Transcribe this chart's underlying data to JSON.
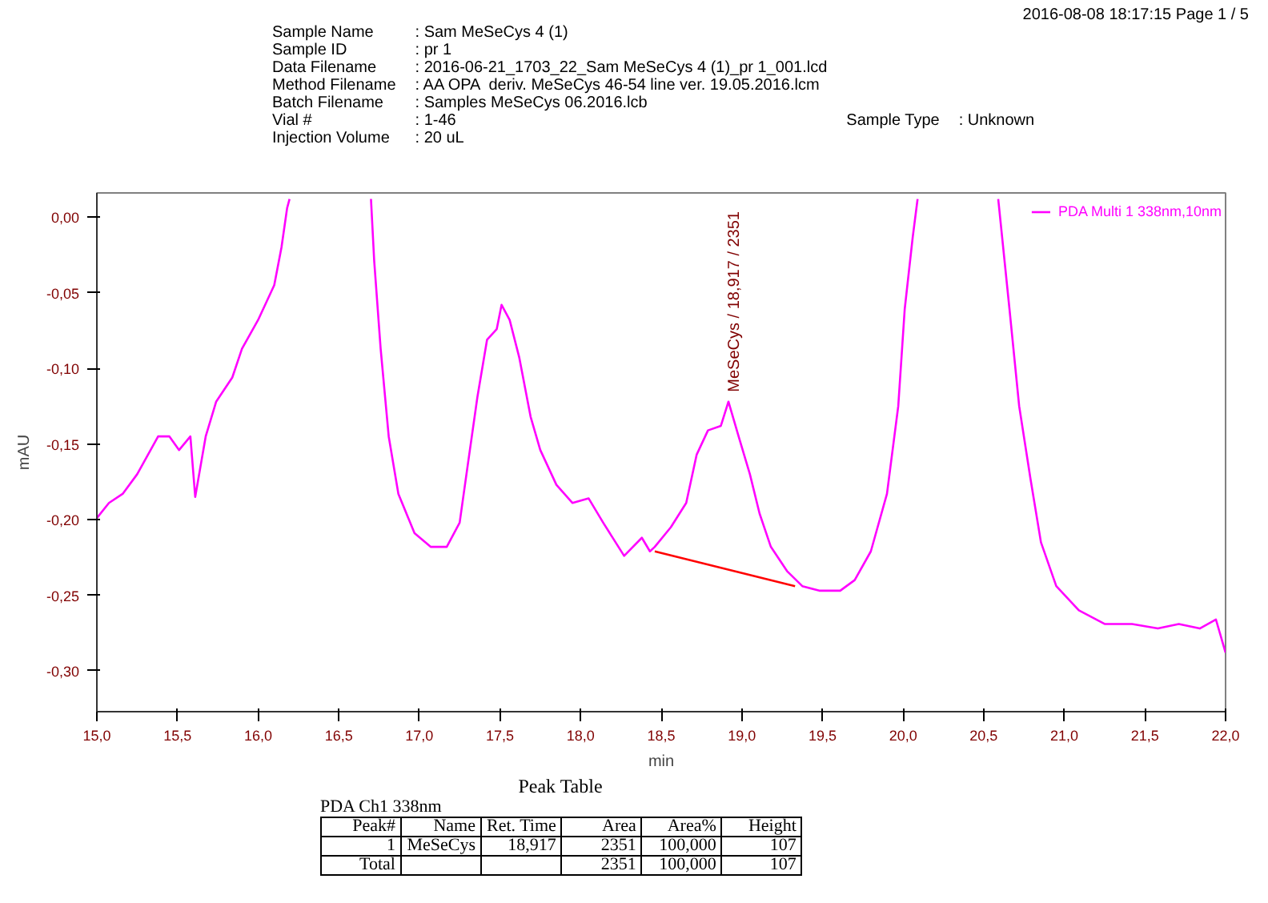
{
  "chart_data": {
    "type": "line",
    "xlabel": "min",
    "ylabel": "mAU",
    "xlim": [
      15.0,
      22.0
    ],
    "ylim": [
      -0.327,
      0.016
    ],
    "xticks": [
      {
        "value": 15.0,
        "label": "15,0"
      },
      {
        "value": 15.5,
        "label": "15,5"
      },
      {
        "value": 16.0,
        "label": "16,0"
      },
      {
        "value": 16.5,
        "label": "16,5"
      },
      {
        "value": 17.0,
        "label": "17,0"
      },
      {
        "value": 17.5,
        "label": "17,5"
      },
      {
        "value": 18.0,
        "label": "18,0"
      },
      {
        "value": 18.5,
        "label": "18,5"
      },
      {
        "value": 19.0,
        "label": "19,0"
      },
      {
        "value": 19.5,
        "label": "19,5"
      },
      {
        "value": 20.0,
        "label": "20,0"
      },
      {
        "value": 20.5,
        "label": "20,5"
      },
      {
        "value": 21.0,
        "label": "21,0"
      },
      {
        "value": 21.5,
        "label": "21,5"
      },
      {
        "value": 22.0,
        "label": "22,0"
      }
    ],
    "yticks": [
      {
        "value": 0.0,
        "label": "0,00"
      },
      {
        "value": -0.05,
        "label": "-0,05"
      },
      {
        "value": -0.1,
        "label": "-0,10"
      },
      {
        "value": -0.15,
        "label": "-0,15"
      },
      {
        "value": -0.2,
        "label": "-0,20"
      },
      {
        "value": -0.25,
        "label": "-0,25"
      },
      {
        "value": -0.3,
        "label": "-0,30"
      }
    ],
    "grid": false,
    "legend": "top right",
    "series": [
      {
        "name": "PDA Multi 1 338nm,10nm",
        "color": "#ff00ff",
        "x": [
          15.0,
          15.075,
          15.16,
          15.25,
          15.38,
          15.45,
          15.51,
          15.58,
          15.61,
          15.675,
          15.74,
          15.84,
          15.9,
          16.0,
          16.1,
          16.145,
          16.18,
          16.195,
          16.45,
          16.7,
          16.72,
          16.76,
          16.81,
          16.87,
          16.97,
          17.07,
          17.17,
          17.25,
          17.3,
          17.36,
          17.42,
          17.48,
          17.51,
          17.56,
          17.62,
          17.69,
          17.75,
          17.85,
          17.95,
          18.05,
          18.14,
          18.27,
          18.38,
          18.43,
          18.46,
          18.56,
          18.655,
          18.72,
          18.79,
          18.87,
          18.917,
          18.98,
          19.05,
          19.11,
          19.18,
          19.28,
          19.375,
          19.48,
          19.61,
          19.7,
          19.8,
          19.9,
          19.97,
          20.01,
          20.06,
          20.09,
          20.35,
          20.59,
          20.66,
          20.72,
          20.79,
          20.855,
          20.95,
          21.09,
          21.25,
          21.42,
          21.58,
          21.71,
          21.84,
          21.94,
          22.0
        ],
        "values": [
          -0.199,
          -0.189,
          -0.183,
          -0.17,
          -0.145,
          -0.145,
          -0.154,
          -0.145,
          -0.185,
          -0.145,
          -0.122,
          -0.106,
          -0.087,
          -0.068,
          -0.045,
          -0.02,
          0.006,
          0.012,
          null,
          0.012,
          -0.029,
          -0.087,
          -0.145,
          -0.183,
          -0.209,
          -0.218,
          -0.218,
          -0.202,
          -0.164,
          -0.119,
          -0.081,
          -0.074,
          -0.058,
          -0.068,
          -0.093,
          -0.132,
          -0.154,
          -0.177,
          -0.189,
          -0.186,
          -0.202,
          -0.224,
          -0.212,
          -0.221,
          -0.218,
          -0.205,
          -0.189,
          -0.157,
          -0.141,
          -0.138,
          -0.122,
          -0.145,
          -0.17,
          -0.196,
          -0.218,
          -0.234,
          -0.244,
          -0.247,
          -0.247,
          -0.24,
          -0.221,
          -0.183,
          -0.125,
          -0.061,
          -0.013,
          0.012,
          null,
          0.012,
          -0.061,
          -0.125,
          -0.173,
          -0.215,
          -0.244,
          -0.26,
          -0.269,
          -0.269,
          -0.272,
          -0.269,
          -0.272,
          -0.266,
          -0.288
        ]
      },
      {
        "color": "#ff0000",
        "x": [
          18.46,
          19.33
        ],
        "values": [
          -0.221,
          -0.244
        ]
      }
    ],
    "annotations": [
      "2016-08-08 18:17:15  Page 1 / 5",
      "Sample Name\t: Sam MeSeCys 4 (1)",
      "Sample ID\t: pr 1",
      "Data Filename\t: 2016-06-21_1703_22_Sam MeSeCys 4 (1)_pr 1_001.lcd",
      "Method Filename\t: AA OPA  deriv. MeSeCys 46-54 line ver. 19.05.2016.lcm",
      "Batch Filename\t: Samples MeSeCys 06.2016.lcb",
      "Vial #\t: 1-46\tSample Type\t: Unknown",
      "Injection Volume\t: 20 uL",
      {
        "text": "MeSeCys / 18,917 / 2351",
        "x": 18.917,
        "y": -0.122
      },
      "Peak Table",
      "PDA Ch1 338nm",
      "Peak#\tName\tRet. Time\tArea\tArea%\tHeight",
      "1\tMeSeCys\t18,917\t2351\t100,000\t107",
      "Total\t\t\t2351\t100,000\t107"
    ]
  }
}
